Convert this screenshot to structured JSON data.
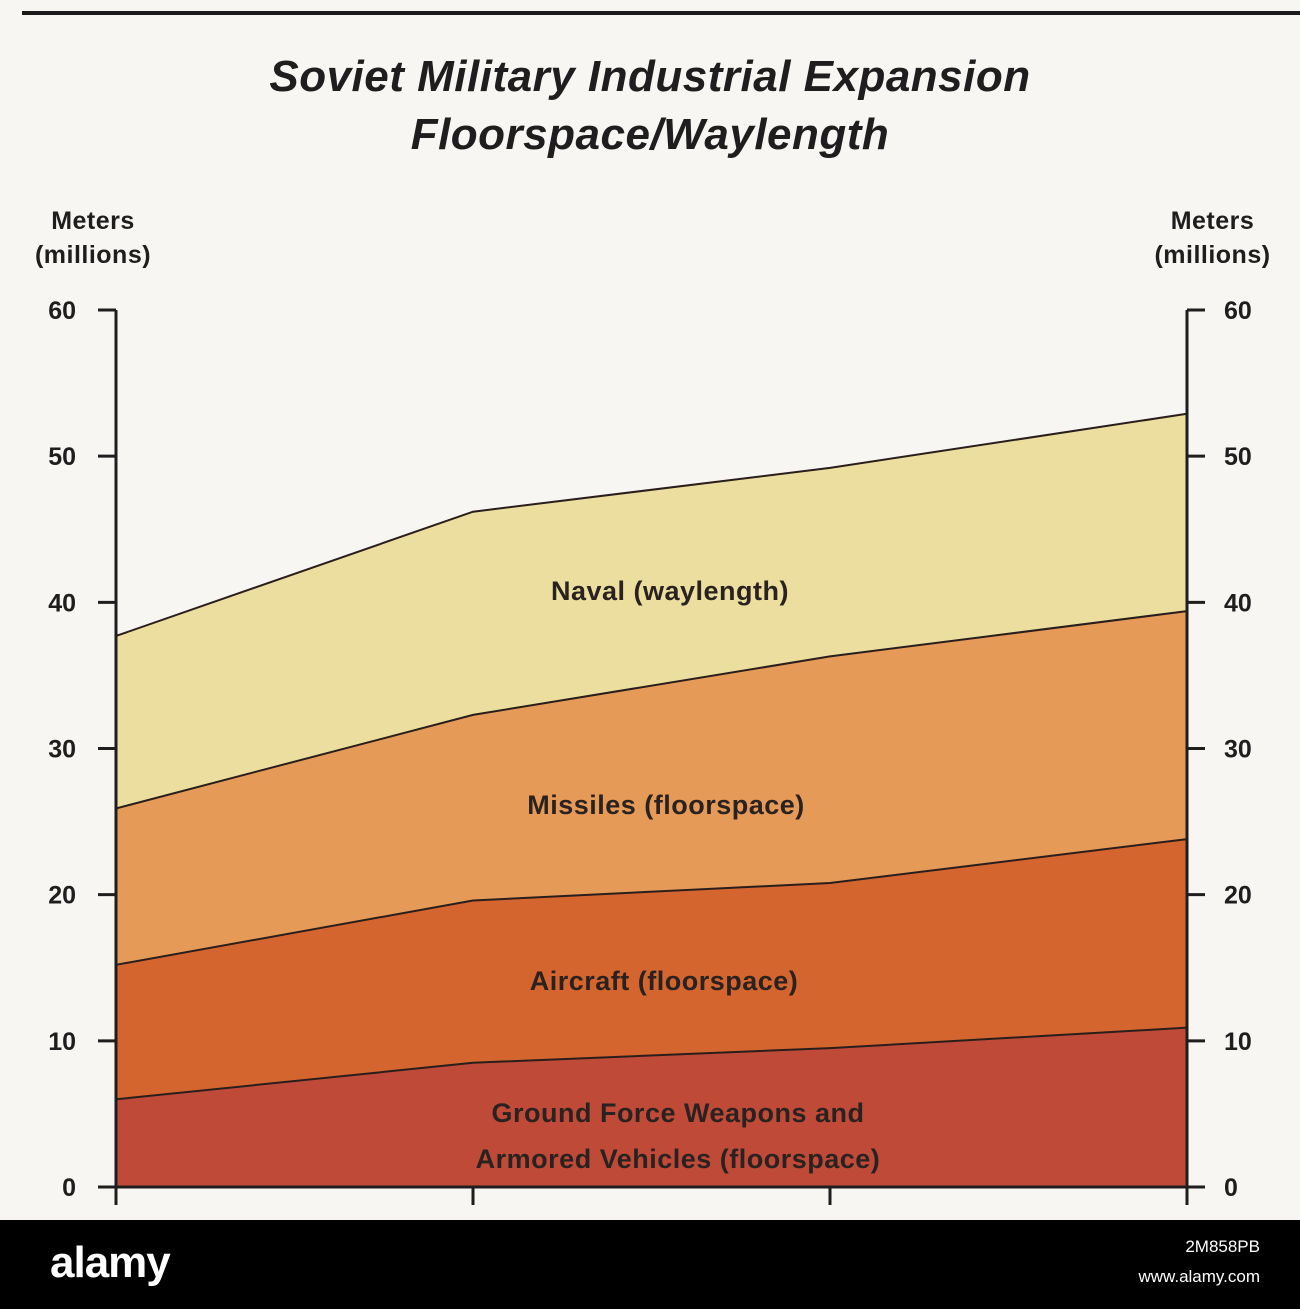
{
  "header": {
    "title_line1": "Soviet Military Industrial Expansion",
    "title_line2": "Floorspace/Waylength"
  },
  "axes": {
    "left_unit_line1": "Meters",
    "left_unit_line2": "(millions)",
    "right_unit_line1": "Meters",
    "right_unit_line2": "(millions)"
  },
  "colors": {
    "ground": "#bf4a38",
    "aircraft": "#d4652f",
    "missiles": "#e59a58",
    "naval": "#ebde9e",
    "line": "#2a1e1c"
  },
  "chart_data": {
    "type": "area",
    "stacked": true,
    "x": [
      0,
      1,
      2,
      3
    ],
    "xlabel": "",
    "ylabel": "Meters (millions)",
    "ylim": [
      0,
      60
    ],
    "yticks": [
      0,
      10,
      20,
      30,
      40,
      50,
      60
    ],
    "grid": false,
    "legend": "labels inside bands",
    "series": [
      {
        "name": "Ground Force Weapons and Armored Vehicles (floorspace)",
        "values": [
          6.0,
          8.5,
          9.5,
          10.9
        ]
      },
      {
        "name": "Aircraft (floorspace)",
        "values": [
          9.2,
          11.1,
          11.3,
          12.9
        ]
      },
      {
        "name": "Missiles (floorspace)",
        "values": [
          10.7,
          12.7,
          15.5,
          15.6
        ]
      },
      {
        "name": "Naval (waylength)",
        "values": [
          11.8,
          13.9,
          12.9,
          13.5
        ]
      }
    ],
    "labels": {
      "naval": "Naval (waylength)",
      "missiles": "Missiles (floorspace)",
      "aircraft": "Aircraft (floorspace)",
      "ground_line1": "Ground Force Weapons and",
      "ground_line2": "Armored Vehicles (floorspace)"
    }
  },
  "footer": {
    "logo": "alamy",
    "image_id": "2M858PB",
    "site": "www.alamy.com"
  }
}
